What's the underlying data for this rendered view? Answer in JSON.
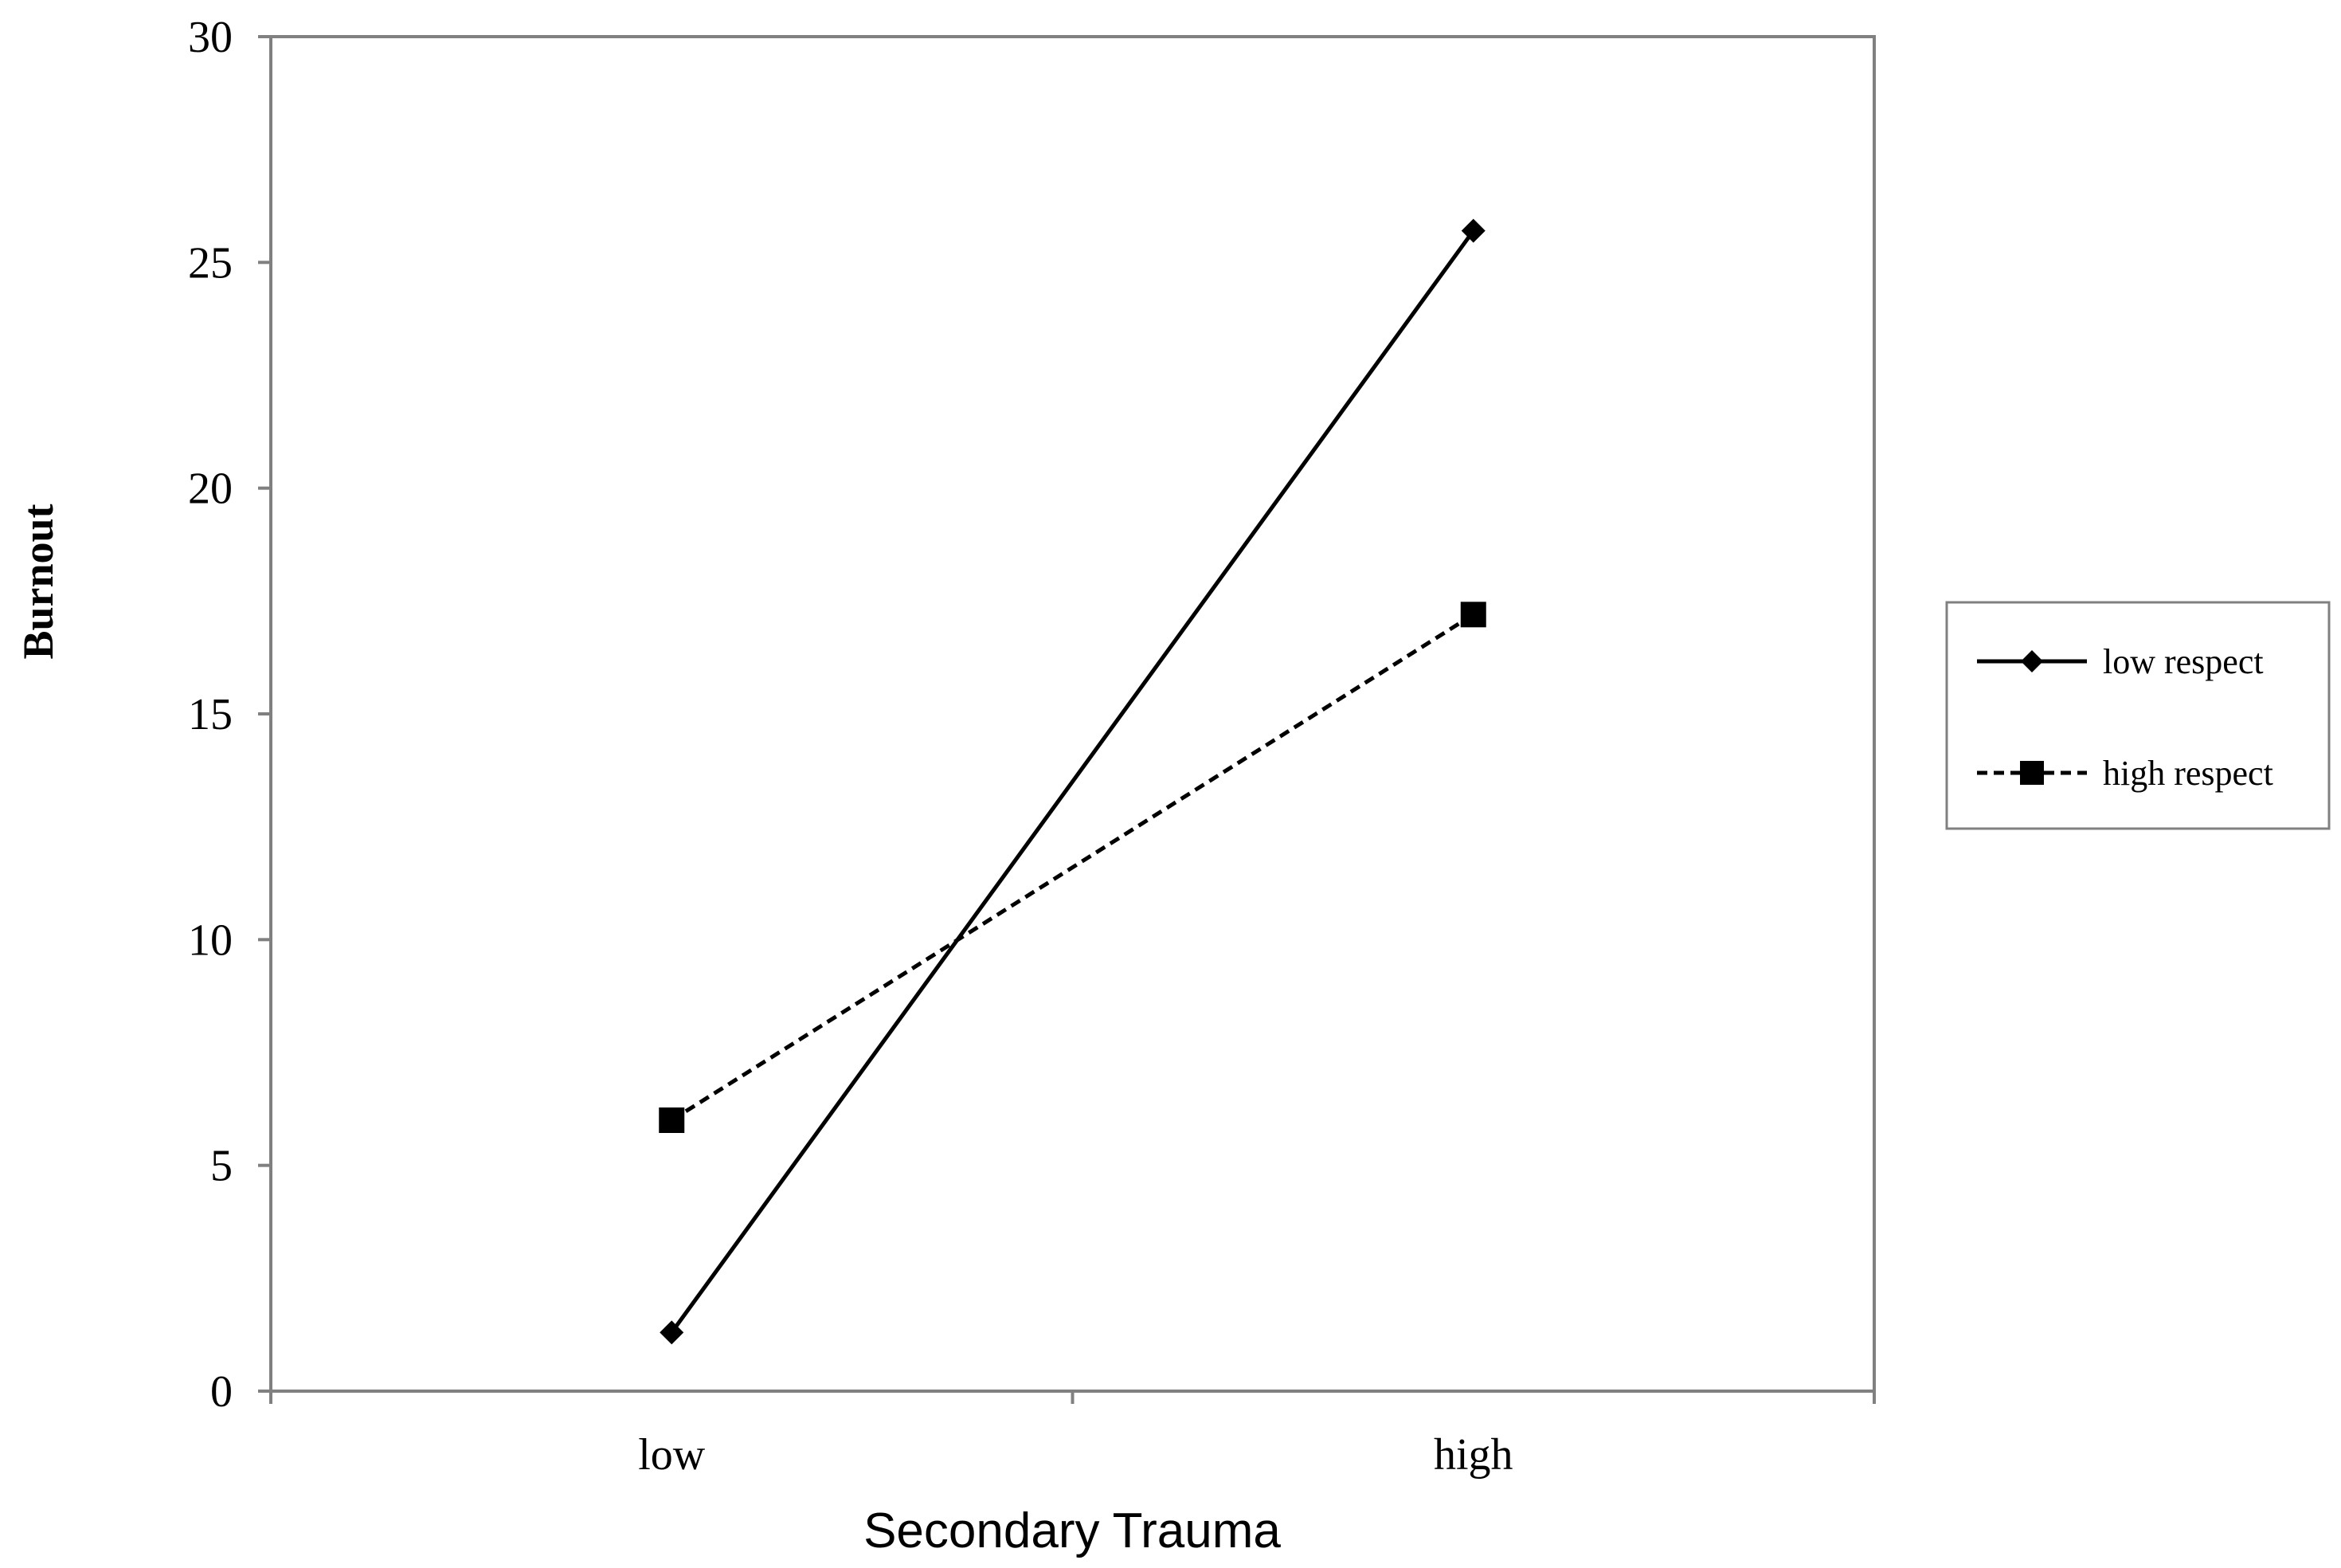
{
  "chart_data": {
    "type": "line",
    "title": "",
    "xlabel": "Secondary Trauma",
    "ylabel": "Burnout",
    "categories": [
      "low",
      "high"
    ],
    "ylim": [
      0,
      30
    ],
    "yticks": [
      0,
      5,
      10,
      15,
      20,
      25,
      30
    ],
    "grid": false,
    "legend_position": "right",
    "series": [
      {
        "name": "low respect",
        "values": [
          1.3,
          25.7
        ],
        "line_style": "solid",
        "marker": "diamond",
        "color": "#000000"
      },
      {
        "name": "high respect",
        "values": [
          6.0,
          17.2
        ],
        "line_style": "dashed",
        "marker": "square",
        "color": "#000000"
      }
    ]
  },
  "legend": {
    "items": [
      "low respect",
      "high respect"
    ]
  }
}
